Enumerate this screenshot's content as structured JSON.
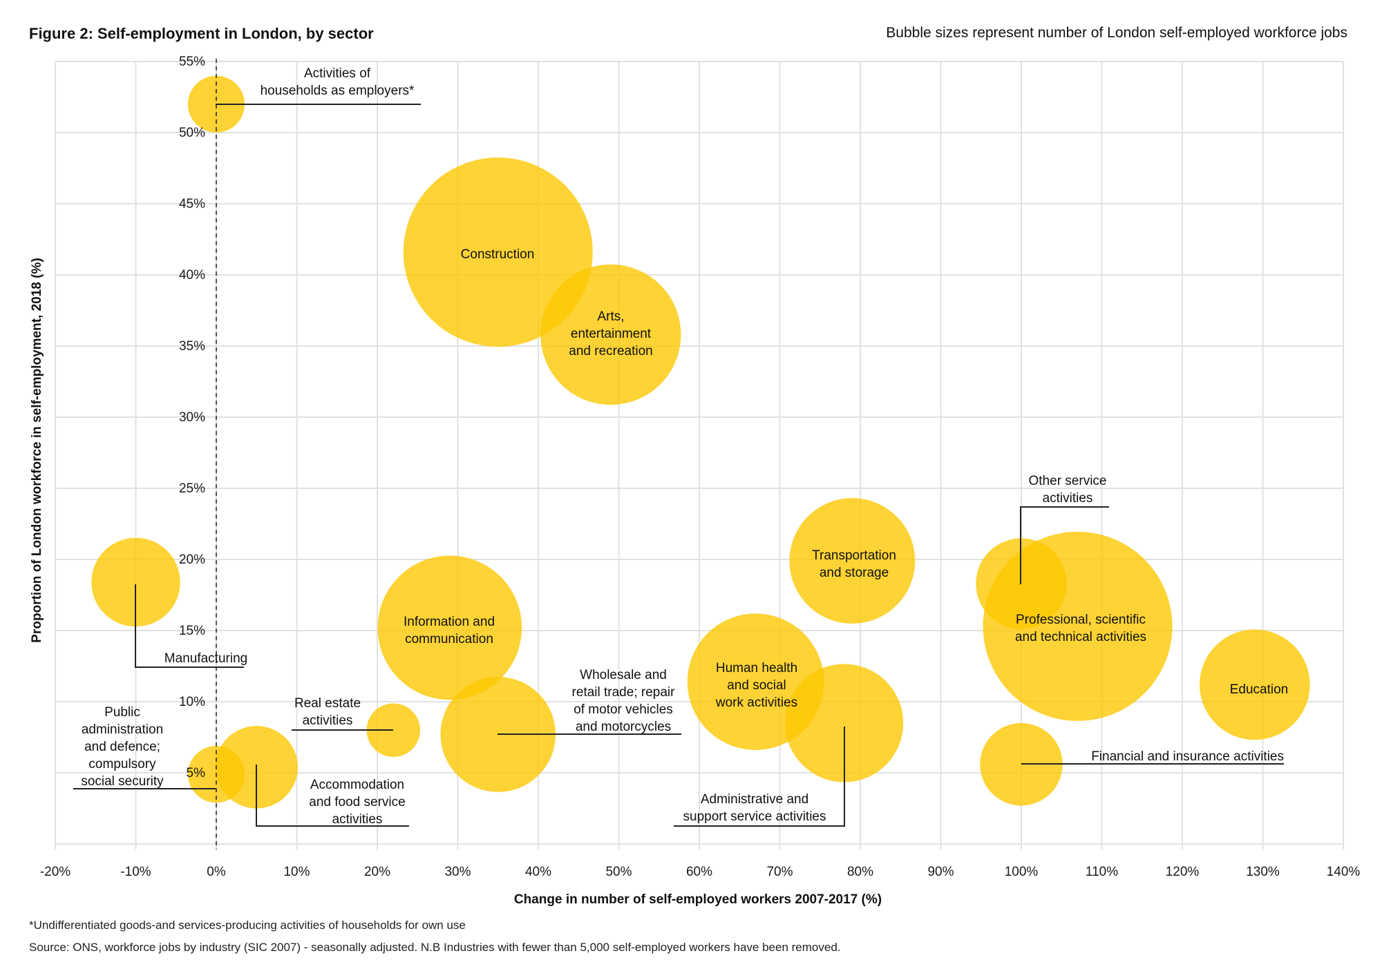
{
  "header": {
    "title": "Figure 2: Self-employment in London, by sector",
    "subtitle": "Bubble sizes represent number of London self-employed workforce jobs"
  },
  "footer": {
    "note": "*Undifferentiated goods-and services-producing activities of households for own use",
    "source": "Source: ONS, workforce jobs by industry (SIC 2007) - seasonally adjusted. N.B Industries with fewer than 5,000 self-employed workers have been removed."
  },
  "colors": {
    "bubble": "#FCC802",
    "text": "#111111",
    "grid": "#E1E1E1"
  },
  "chart_data": {
    "type": "scatter",
    "subtype": "bubble",
    "title": "Figure 2: Self-employment in London, by sector",
    "subtitle": "Bubble sizes represent number of London self-employed workforce jobs",
    "xlabel": "Change in number of self-employed workers 2007-2017 (%)",
    "ylabel": "Proportion of London workforce in self-employment, 2018 (%)",
    "xlim": [
      -20,
      140
    ],
    "ylim": [
      0,
      55
    ],
    "x_ticks": [
      -20,
      -10,
      0,
      10,
      20,
      30,
      40,
      50,
      60,
      70,
      80,
      90,
      100,
      110,
      120,
      130,
      140
    ],
    "x_tick_labels": [
      "-20%",
      "-10%",
      "0%",
      "10%",
      "20%",
      "30%",
      "40%",
      "50%",
      "60%",
      "70%",
      "80%",
      "90%",
      "100%",
      "110%",
      "120%",
      "130%",
      "140%"
    ],
    "y_ticks": [
      5,
      10,
      15,
      20,
      25,
      30,
      35,
      40,
      45,
      50,
      55
    ],
    "y_tick_labels": [
      "5%",
      "10%",
      "15%",
      "20%",
      "25%",
      "30%",
      "35%",
      "40%",
      "45%",
      "50%",
      "55%"
    ],
    "grid": true,
    "reference_line": {
      "axis": "x",
      "value": 0,
      "style": "dashed"
    },
    "size_note": "relative bubble area, largest = 100 (estimated)",
    "points": [
      {
        "name": "Activities of households as employers*",
        "label_lines": [
          "Activities of",
          "households as employers*"
        ],
        "x": 0,
        "y": 52,
        "size": 9
      },
      {
        "name": "Construction",
        "label_lines": [
          "Construction"
        ],
        "x": 35,
        "y": 41.6,
        "size": 100
      },
      {
        "name": "Arts, entertainment and recreation",
        "label_lines": [
          "Arts,",
          "entertainment",
          "and recreation"
        ],
        "x": 49,
        "y": 35.8,
        "size": 55
      },
      {
        "name": "Manufacturing",
        "label_lines": [
          "Manufacturing"
        ],
        "x": -10,
        "y": 18.4,
        "size": 22
      },
      {
        "name": "Information and communication",
        "label_lines": [
          "Information and",
          "communication"
        ],
        "x": 29,
        "y": 15.2,
        "size": 58
      },
      {
        "name": "Transportation and storage",
        "label_lines": [
          "Transportation",
          "and storage"
        ],
        "x": 79,
        "y": 19.9,
        "size": 44
      },
      {
        "name": "Other service activities",
        "label_lines": [
          "Other service",
          "activities"
        ],
        "x": 100,
        "y": 18.3,
        "size": 23
      },
      {
        "name": "Professional, scientific and technical activities",
        "label_lines": [
          "Professional, scientific",
          "and technical activities"
        ],
        "x": 107,
        "y": 15.3,
        "size": 100
      },
      {
        "name": "Human health and social work activities",
        "label_lines": [
          "Human health",
          "and social",
          "work activities"
        ],
        "x": 67,
        "y": 11.4,
        "size": 52
      },
      {
        "name": "Education",
        "label_lines": [
          "Education"
        ],
        "x": 129,
        "y": 11.2,
        "size": 34
      },
      {
        "name": "Real estate activities",
        "label_lines": [
          "Real estate",
          "activities"
        ],
        "x": 22,
        "y": 8.0,
        "size": 8
      },
      {
        "name": "Wholesale and retail trade; repair of motor vehicles and motorcycles",
        "label_lines": [
          "Wholesale and",
          "retail trade; repair",
          "of motor vehicles",
          "and motorcycles"
        ],
        "x": 35,
        "y": 7.7,
        "size": 37
      },
      {
        "name": "Administrative and support service activities",
        "label_lines": [
          "Administrative and",
          "support service activities"
        ],
        "x": 78,
        "y": 8.5,
        "size": 39
      },
      {
        "name": "Financial and insurance activities",
        "label_lines": [
          "Financial and insurance activities"
        ],
        "x": 100,
        "y": 5.6,
        "size": 19
      },
      {
        "name": "Public administration and defence; compulsory social security",
        "label_lines": [
          "Public",
          "administration",
          "and defence;",
          "compulsory",
          "social security"
        ],
        "x": 0,
        "y": 4.9,
        "size": 9
      },
      {
        "name": "Accommodation and food service activities",
        "label_lines": [
          "Accommodation",
          "and food service",
          "activities"
        ],
        "x": 5,
        "y": 5.4,
        "size": 19
      }
    ]
  }
}
